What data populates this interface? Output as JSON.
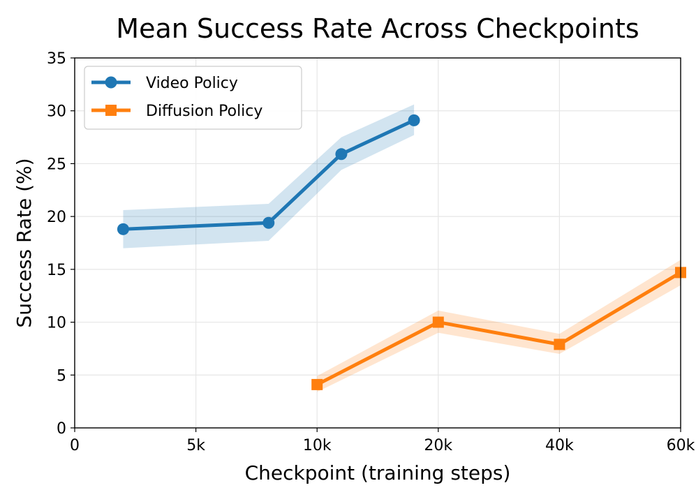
{
  "chart_data": {
    "type": "line",
    "title": "Mean Success Rate Across Checkpoints",
    "xlabel": "Checkpoint (training steps)",
    "ylabel": "Success Rate (%)",
    "xlim": [
      0,
      5
    ],
    "ylim": [
      0,
      35
    ],
    "x_ticks": [
      {
        "value": 0,
        "label": "0"
      },
      {
        "value": 1,
        "label": "5k"
      },
      {
        "value": 2,
        "label": "10k"
      },
      {
        "value": 3,
        "label": "20k"
      },
      {
        "value": 4,
        "label": "40k"
      },
      {
        "value": 5,
        "label": "60k"
      }
    ],
    "y_ticks": [
      0,
      5,
      10,
      15,
      20,
      25,
      30,
      35
    ],
    "grid": true,
    "legend_position": "top-left",
    "series": [
      {
        "name": "Video Policy",
        "color": "#1f77b4",
        "band_color": "#1f77b4",
        "marker": "circle",
        "x": [
          0.4,
          1.6,
          2.2,
          2.8
        ],
        "y": [
          18.8,
          19.4,
          25.9,
          29.1
        ],
        "lower": [
          17.0,
          17.7,
          24.4,
          27.7
        ],
        "upper": [
          20.6,
          21.2,
          27.5,
          30.6
        ]
      },
      {
        "name": "Diffusion Policy",
        "color": "#ff7f0e",
        "band_color": "#ff7f0e",
        "marker": "square",
        "x": [
          2,
          3,
          4,
          5
        ],
        "y": [
          4.1,
          10.0,
          7.9,
          14.7
        ],
        "lower": [
          3.4,
          9.0,
          7.0,
          13.5
        ],
        "upper": [
          4.9,
          11.1,
          8.9,
          15.9
        ]
      }
    ]
  }
}
